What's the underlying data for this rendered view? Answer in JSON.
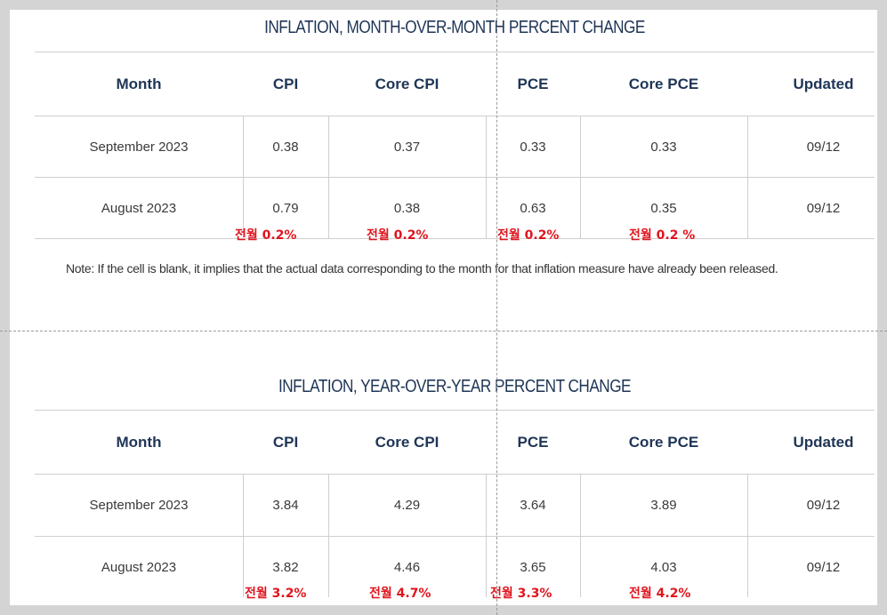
{
  "mom": {
    "title": "INFLATION, MONTH-OVER-MONTH PERCENT CHANGE",
    "headers": [
      "Month",
      "CPI",
      "Core CPI",
      "PCE",
      "Core PCE",
      "Updated"
    ],
    "rows": [
      [
        "September 2023",
        "0.38",
        "0.37",
        "0.33",
        "0.33",
        "09/12"
      ],
      [
        "August 2023",
        "0.79",
        "0.38",
        "0.63",
        "0.35",
        "09/12"
      ]
    ],
    "annotations": [
      "전월 0.2%",
      "전월 0.2%",
      "전월 0.2%",
      "전월 0.2 %"
    ],
    "note": "Note: If the cell is blank, it implies that the actual data corresponding to the month for that inflation measure have already been released."
  },
  "yoy": {
    "title": "INFLATION, YEAR-OVER-YEAR PERCENT CHANGE",
    "headers": [
      "Month",
      "CPI",
      "Core CPI",
      "PCE",
      "Core PCE",
      "Updated"
    ],
    "rows": [
      [
        "September 2023",
        "3.84",
        "4.29",
        "3.64",
        "3.89",
        "09/12"
      ],
      [
        "August 2023",
        "3.82",
        "4.46",
        "3.65",
        "4.03",
        "09/12"
      ]
    ],
    "annotations": [
      "전월 3.2%",
      "전월 4.7%",
      "전월 3.3%",
      "전월 4.2%"
    ]
  },
  "colors": {
    "title": "#1f3556",
    "annotation": "#e0141e",
    "background": "#d4d4d4"
  }
}
